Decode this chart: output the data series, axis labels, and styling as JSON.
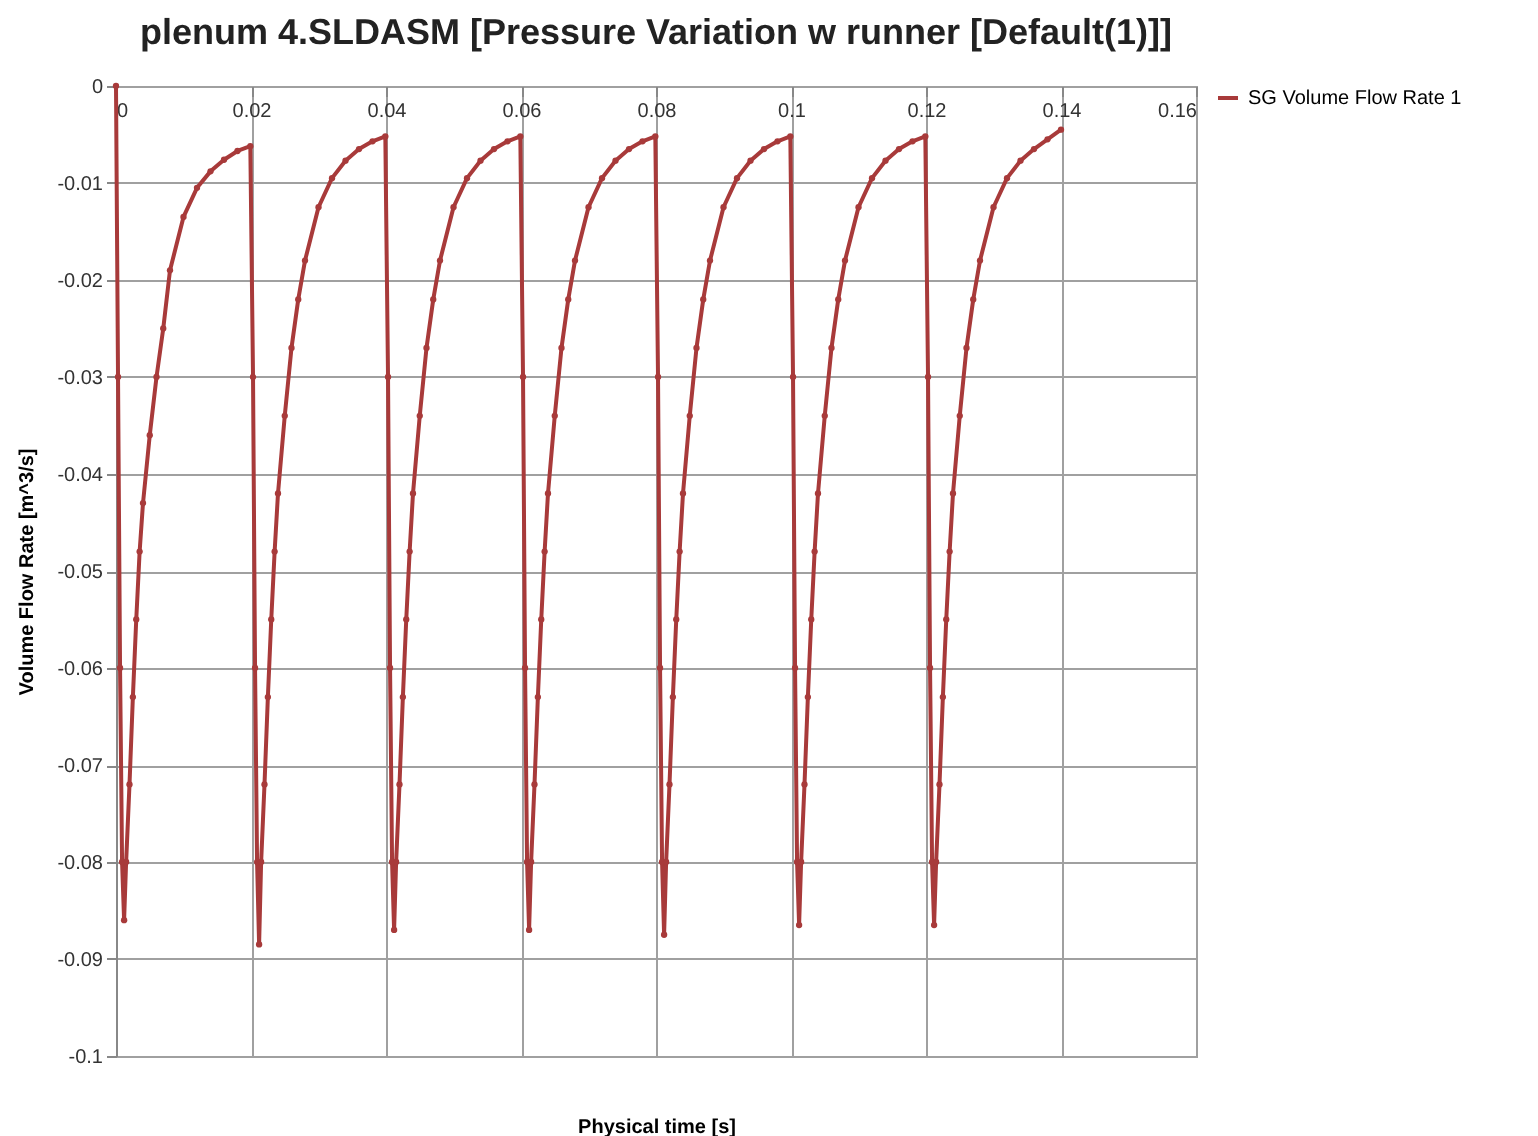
{
  "chart_data": {
    "type": "line",
    "title": "plenum 4.SLDASM [Pressure Variation w runner [Default(1)]]",
    "xlabel": "Physical time [s]",
    "ylabel": "Volume Flow Rate [m^3/s]",
    "xlim": [
      0,
      0.16
    ],
    "xticks": [
      0,
      0.02,
      0.04,
      0.06,
      0.08,
      0.1,
      0.12,
      0.14,
      0.16
    ],
    "ylim": [
      -0.1,
      0
    ],
    "yticks": [
      0,
      -0.01,
      -0.02,
      -0.03,
      -0.04,
      -0.05,
      -0.06,
      -0.07,
      -0.08,
      -0.09,
      -0.1
    ],
    "grid": true,
    "legend": "right",
    "marker": "circle",
    "line_style": "solid",
    "series": [
      {
        "name": "SG Volume Flow Rate 1",
        "color": "#a83a3a",
        "x": [
          0,
          0.0003,
          0.0006,
          0.0009,
          0.0012,
          0.0015,
          0.002,
          0.0025,
          0.003,
          0.0035,
          0.004,
          0.005,
          0.006,
          0.007,
          0.008,
          0.01,
          0.012,
          0.014,
          0.016,
          0.018,
          0.0199,
          0.0203,
          0.0206,
          0.0209,
          0.0212,
          0.0215,
          0.022,
          0.0225,
          0.023,
          0.0235,
          0.024,
          0.025,
          0.026,
          0.027,
          0.028,
          0.03,
          0.032,
          0.034,
          0.036,
          0.038,
          0.0399,
          0.0403,
          0.0406,
          0.0409,
          0.0412,
          0.0415,
          0.042,
          0.0425,
          0.043,
          0.0435,
          0.044,
          0.045,
          0.046,
          0.047,
          0.048,
          0.05,
          0.052,
          0.054,
          0.056,
          0.058,
          0.0599,
          0.0603,
          0.0606,
          0.0609,
          0.0612,
          0.0615,
          0.062,
          0.0625,
          0.063,
          0.0635,
          0.064,
          0.065,
          0.066,
          0.067,
          0.068,
          0.07,
          0.072,
          0.074,
          0.076,
          0.078,
          0.0799,
          0.0803,
          0.0806,
          0.0809,
          0.0812,
          0.0815,
          0.082,
          0.0825,
          0.083,
          0.0835,
          0.084,
          0.085,
          0.086,
          0.087,
          0.088,
          0.09,
          0.092,
          0.094,
          0.096,
          0.098,
          0.0999,
          0.1003,
          0.1006,
          0.1009,
          0.1012,
          0.1015,
          0.102,
          0.1025,
          0.103,
          0.1035,
          0.104,
          0.105,
          0.106,
          0.107,
          0.108,
          0.11,
          0.112,
          0.114,
          0.116,
          0.118,
          0.1199,
          0.1203,
          0.1206,
          0.1209,
          0.1212,
          0.1215,
          0.122,
          0.1225,
          0.123,
          0.1235,
          0.124,
          0.125,
          0.126,
          0.127,
          0.128,
          0.13,
          0.132,
          0.134,
          0.136,
          0.138,
          0.14
        ],
        "values": [
          0,
          -0.03,
          -0.06,
          -0.08,
          -0.086,
          -0.08,
          -0.072,
          -0.063,
          -0.055,
          -0.048,
          -0.043,
          -0.036,
          -0.03,
          -0.025,
          -0.019,
          -0.0135,
          -0.0105,
          -0.0088,
          -0.0076,
          -0.0067,
          -0.0062,
          -0.03,
          -0.06,
          -0.08,
          -0.0885,
          -0.08,
          -0.072,
          -0.063,
          -0.055,
          -0.048,
          -0.042,
          -0.034,
          -0.027,
          -0.022,
          -0.018,
          -0.0125,
          -0.0095,
          -0.0077,
          -0.0065,
          -0.0057,
          -0.0052,
          -0.03,
          -0.06,
          -0.08,
          -0.087,
          -0.08,
          -0.072,
          -0.063,
          -0.055,
          -0.048,
          -0.042,
          -0.034,
          -0.027,
          -0.022,
          -0.018,
          -0.0125,
          -0.0095,
          -0.0077,
          -0.0065,
          -0.0057,
          -0.0052,
          -0.03,
          -0.06,
          -0.08,
          -0.087,
          -0.08,
          -0.072,
          -0.063,
          -0.055,
          -0.048,
          -0.042,
          -0.034,
          -0.027,
          -0.022,
          -0.018,
          -0.0125,
          -0.0095,
          -0.0077,
          -0.0065,
          -0.0057,
          -0.0052,
          -0.03,
          -0.06,
          -0.08,
          -0.0875,
          -0.08,
          -0.072,
          -0.063,
          -0.055,
          -0.048,
          -0.042,
          -0.034,
          -0.027,
          -0.022,
          -0.018,
          -0.0125,
          -0.0095,
          -0.0077,
          -0.0065,
          -0.0057,
          -0.0052,
          -0.03,
          -0.06,
          -0.08,
          -0.0865,
          -0.08,
          -0.072,
          -0.063,
          -0.055,
          -0.048,
          -0.042,
          -0.034,
          -0.027,
          -0.022,
          -0.018,
          -0.0125,
          -0.0095,
          -0.0077,
          -0.0065,
          -0.0057,
          -0.0052,
          -0.03,
          -0.06,
          -0.08,
          -0.0865,
          -0.08,
          -0.072,
          -0.063,
          -0.055,
          -0.048,
          -0.042,
          -0.034,
          -0.027,
          -0.022,
          -0.018,
          -0.0125,
          -0.0095,
          -0.0077,
          -0.0065,
          -0.0055,
          -0.0045
        ]
      }
    ]
  }
}
